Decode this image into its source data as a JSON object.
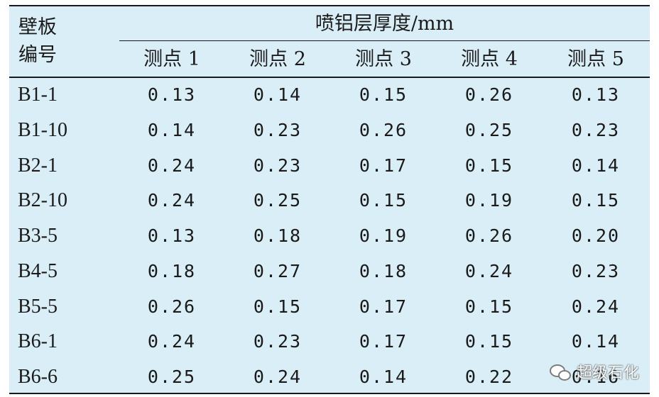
{
  "table": {
    "header_id_line1": "壁板",
    "header_id_line2": "编号",
    "header_group": "喷铝层厚度/mm",
    "columns": [
      "测点 1",
      "测点 2",
      "测点 3",
      "测点 4",
      "测点 5"
    ],
    "rows": [
      {
        "id": "B1-1",
        "values": [
          "0.13",
          "0.14",
          "0.15",
          "0.26",
          "0.13"
        ]
      },
      {
        "id": "B1-10",
        "values": [
          "0.14",
          "0.23",
          "0.26",
          "0.25",
          "0.23"
        ]
      },
      {
        "id": "B2-1",
        "values": [
          "0.24",
          "0.23",
          "0.17",
          "0.15",
          "0.14"
        ]
      },
      {
        "id": "B2-10",
        "values": [
          "0.24",
          "0.25",
          "0.15",
          "0.19",
          "0.15"
        ]
      },
      {
        "id": "B3-5",
        "values": [
          "0.13",
          "0.18",
          "0.19",
          "0.26",
          "0.20"
        ]
      },
      {
        "id": "B4-5",
        "values": [
          "0.18",
          "0.27",
          "0.18",
          "0.24",
          "0.23"
        ]
      },
      {
        "id": "B5-5",
        "values": [
          "0.26",
          "0.15",
          "0.17",
          "0.15",
          "0.24"
        ]
      },
      {
        "id": "B6-1",
        "values": [
          "0.24",
          "0.23",
          "0.17",
          "0.15",
          "0.14"
        ]
      },
      {
        "id": "B6-6",
        "values": [
          "0.25",
          "0.24",
          "0.14",
          "0.22",
          "0.16"
        ]
      }
    ]
  },
  "watermark": {
    "text": "超级石化",
    "icon": "wechat-icon"
  },
  "colors": {
    "background": "#d9eef6",
    "rule": "#1a1a1a"
  }
}
